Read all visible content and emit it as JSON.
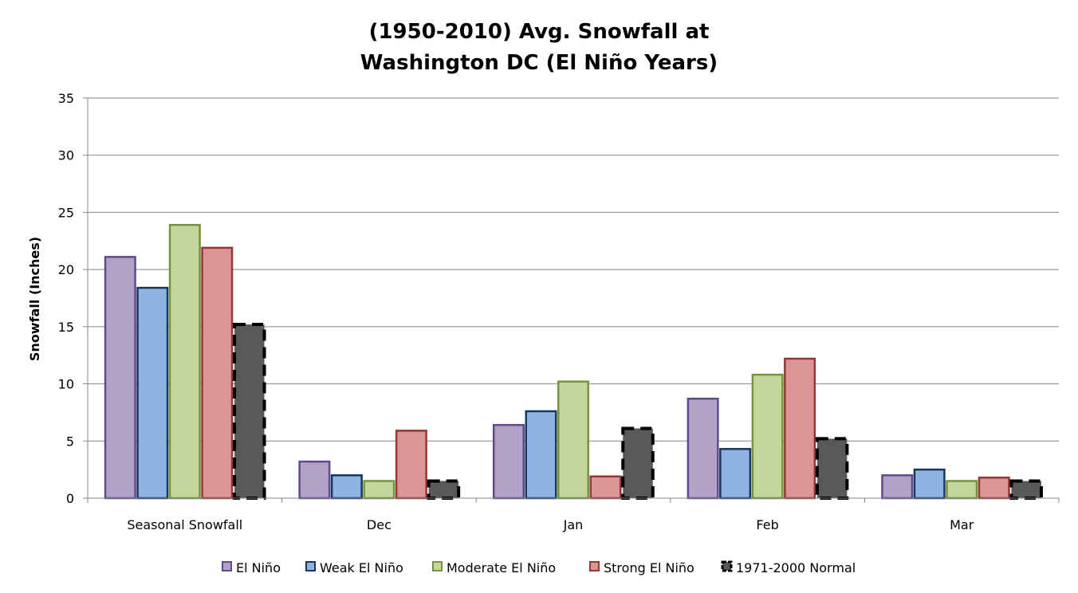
{
  "chart_data": {
    "type": "bar",
    "title": [
      "(1950-2010) Avg. Snowfall at",
      "Washington DC (El Niño Years)"
    ],
    "ylabel": "Snowfall (Inches)",
    "xlabel": "",
    "ylim": [
      0,
      35
    ],
    "yticks": [
      0,
      5,
      10,
      15,
      20,
      25,
      30,
      35
    ],
    "grid": true,
    "legend_position": "bottom",
    "categories": [
      "Seasonal Snowfall",
      "Dec",
      "Jan",
      "Feb",
      "Mar"
    ],
    "series": [
      {
        "name": "El Niño",
        "values": [
          21.1,
          3.2,
          6.4,
          8.7,
          2.0
        ],
        "fill": "#b3a2c7",
        "stroke": "#5f4b8b",
        "dashed": false
      },
      {
        "name": "Weak El Niño",
        "values": [
          18.4,
          2.0,
          7.6,
          4.3,
          2.5
        ],
        "fill": "#8db4e2",
        "stroke": "#17375e",
        "dashed": false
      },
      {
        "name": "Moderate El Niño",
        "values": [
          23.9,
          1.5,
          10.2,
          10.8,
          1.5
        ],
        "fill": "#c3d69b",
        "stroke": "#77933c",
        "dashed": false
      },
      {
        "name": "Strong El Niño",
        "values": [
          21.9,
          5.9,
          1.9,
          12.2,
          1.8
        ],
        "fill": "#da9694",
        "stroke": "#953735",
        "dashed": false
      },
      {
        "name": "1971-2000 Normal",
        "values": [
          15.2,
          1.5,
          6.1,
          5.2,
          1.5
        ],
        "fill": "#595959",
        "stroke": "#000000",
        "dashed": true
      }
    ]
  }
}
